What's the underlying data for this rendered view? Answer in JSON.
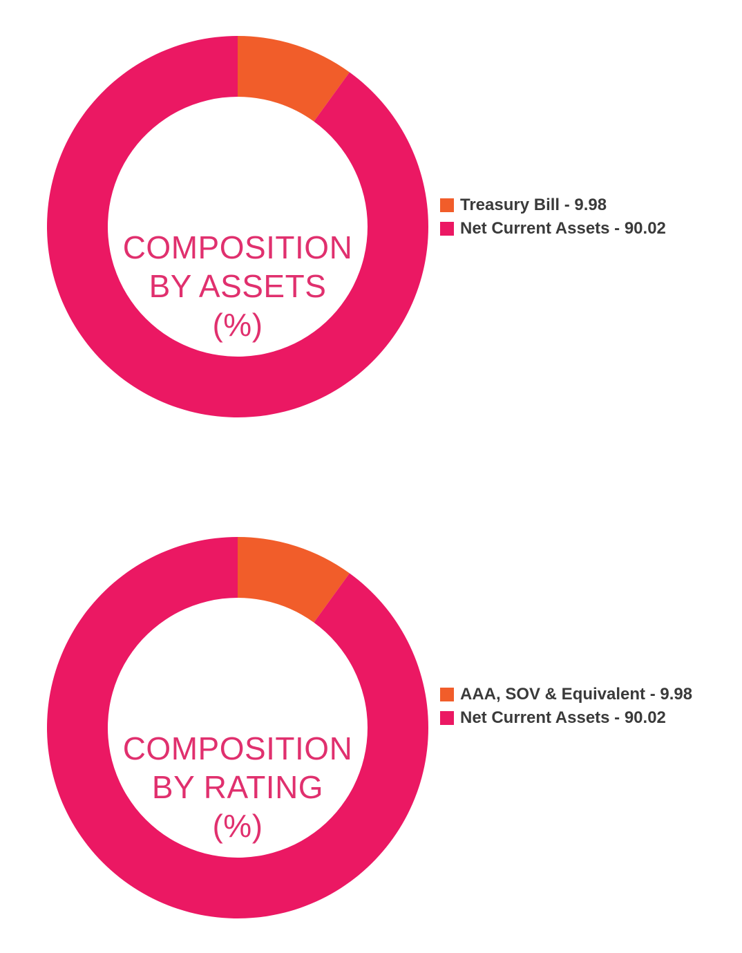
{
  "chart_data": [
    {
      "type": "pie",
      "variant": "donut",
      "title_lines": [
        "COMPOSITION",
        "BY ASSETS",
        "(%)"
      ],
      "legend_placement": "right",
      "slices": [
        {
          "label": "Treasury Bill - 9.98",
          "value": 9.98,
          "color": "#f15d2a"
        },
        {
          "label": "Net Current Assets - 90.02",
          "value": 90.02,
          "color": "#eb1863"
        }
      ]
    },
    {
      "type": "pie",
      "variant": "donut",
      "title_lines": [
        "COMPOSITION",
        "BY RATING",
        "(%)"
      ],
      "legend_placement": "right",
      "slices": [
        {
          "label": "AAA, SOV & Equivalent - 9.98",
          "value": 9.98,
          "color": "#f15d2a"
        },
        {
          "label": "Net Current Assets - 90.02",
          "value": 90.02,
          "color": "#eb1863"
        }
      ]
    }
  ],
  "colors": {
    "title": "#e0306e",
    "legend_text": "#3a3a3a"
  }
}
